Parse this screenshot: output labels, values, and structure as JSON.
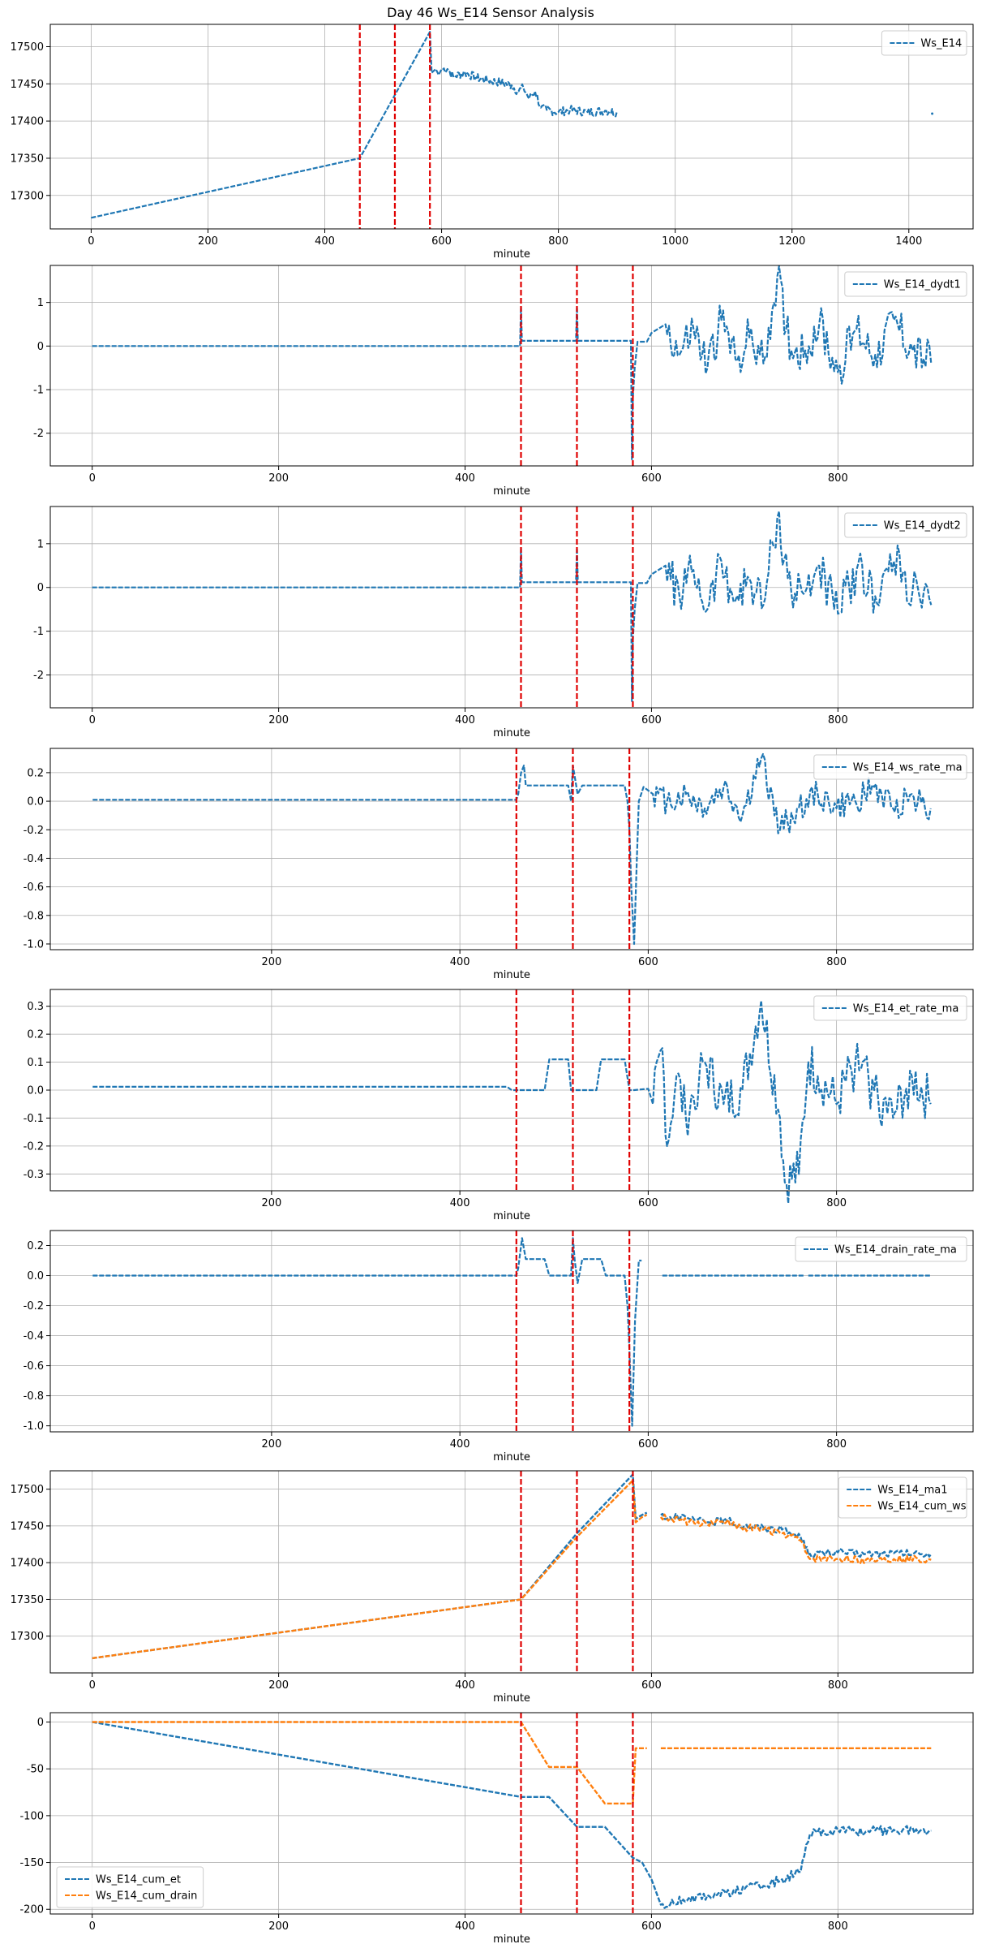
{
  "figure_title": "Day 46 Ws_E14 Sensor Analysis",
  "colors": {
    "blue": "#1f77b4",
    "orange": "#ff7f0e",
    "vline": "#e00000",
    "grid": "#b0b0b0"
  },
  "chart_data": [
    {
      "type": "line",
      "title": "",
      "xlabel": "minute",
      "xlim": [
        -70,
        1510
      ],
      "ylim": [
        17255,
        17530
      ],
      "xticks": [
        0,
        200,
        400,
        600,
        800,
        1000,
        1200,
        1400
      ],
      "yticks": [
        17300,
        17350,
        17400,
        17450,
        17500
      ],
      "yticklabels": [
        "17300",
        "17350",
        "17400",
        "17450",
        "17500"
      ],
      "vlines": [
        460,
        520,
        580
      ],
      "legend": {
        "position": "top-right"
      },
      "series": [
        {
          "name": "Ws_E14",
          "color": "#1f77b4",
          "style": "dashed",
          "width": 2.2,
          "x": [
            0,
            460,
            520,
            580,
            583,
            590,
            595,
            600,
            610,
            620,
            640,
            660,
            680,
            700,
            720,
            730,
            740,
            750,
            760,
            770,
            780,
            800,
            820,
            850,
            880,
            900,
            1440
          ],
          "y": [
            17270,
            17350,
            17435,
            17520,
            17465,
            17470,
            17462,
            17470,
            17470,
            17460,
            17465,
            17458,
            17455,
            17452,
            17448,
            17440,
            17445,
            17430,
            17440,
            17418,
            17415,
            17412,
            17415,
            17412,
            17414,
            17412,
            17410
          ],
          "gaps_after_x": [
            900
          ],
          "noise": 6,
          "noise_from": 600,
          "noise_to": 900
        }
      ]
    },
    {
      "type": "line",
      "title": "",
      "xlabel": "minute",
      "xlim": [
        -45,
        945
      ],
      "ylim": [
        -2.75,
        1.85
      ],
      "xticks": [
        0,
        200,
        400,
        600,
        800
      ],
      "yticks": [
        -2,
        -1,
        0,
        1
      ],
      "yticklabels": [
        "-2",
        "-1",
        "0",
        "1"
      ],
      "vlines": [
        460,
        520,
        580
      ],
      "legend": {
        "position": "top-right"
      },
      "series": [
        {
          "name": "Ws_E14_dydt1",
          "color": "#1f77b4",
          "style": "dashed",
          "width": 2.2,
          "x": [
            0,
            459,
            460,
            461,
            519,
            520,
            521,
            578,
            579,
            580,
            582,
            585,
            590,
            595,
            600,
            615,
            630,
            645,
            660,
            675,
            690,
            705,
            720,
            735,
            750,
            765,
            780,
            800,
            820,
            840,
            860,
            880,
            900
          ],
          "y": [
            0,
            0,
            0.9,
            0.12,
            0.12,
            0.9,
            0.12,
            0.12,
            -2.6,
            -1.2,
            -0.5,
            0.1,
            0.1,
            0.1,
            0.3,
            0.5,
            -0.2,
            0.4,
            -0.5,
            0.6,
            -0.3,
            0.2,
            -0.4,
            1.6,
            -0.1,
            -0.1,
            0.5,
            -0.6,
            0.4,
            -0.2,
            0.6,
            -0.1,
            -0.4
          ],
          "gaps_after_x": [],
          "noise": 0.5,
          "noise_from": 605,
          "noise_to": 900
        }
      ]
    },
    {
      "type": "line",
      "title": "",
      "xlabel": "minute",
      "xlim": [
        -45,
        945
      ],
      "ylim": [
        -2.75,
        1.85
      ],
      "xticks": [
        0,
        200,
        400,
        600,
        800
      ],
      "yticks": [
        -2,
        -1,
        0,
        1
      ],
      "yticklabels": [
        "-2",
        "-1",
        "0",
        "1"
      ],
      "vlines": [
        460,
        520,
        580
      ],
      "legend": {
        "position": "top-right"
      },
      "series": [
        {
          "name": "Ws_E14_dydt2",
          "color": "#1f77b4",
          "style": "dashed",
          "width": 2.2,
          "x": [
            0,
            459,
            460,
            461,
            519,
            520,
            521,
            578,
            579,
            580,
            582,
            585,
            590,
            595,
            600,
            615,
            630,
            645,
            660,
            675,
            690,
            705,
            720,
            735,
            750,
            765,
            780,
            800,
            820,
            840,
            860,
            880,
            900
          ],
          "y": [
            0,
            0,
            0.9,
            0.12,
            0.12,
            0.9,
            0.12,
            0.12,
            -2.6,
            -1.2,
            -0.5,
            0.1,
            0.1,
            0.1,
            0.3,
            0.5,
            -0.2,
            0.4,
            -0.5,
            0.6,
            -0.3,
            0.2,
            -0.4,
            1.6,
            -0.1,
            -0.1,
            0.5,
            -0.6,
            0.4,
            -0.2,
            0.6,
            -0.1,
            -0.4
          ],
          "gaps_after_x": [],
          "noise": 0.5,
          "noise_from": 605,
          "noise_to": 900
        }
      ]
    },
    {
      "type": "line",
      "title": "",
      "xlabel": "minute",
      "xlim": [
        -35,
        945
      ],
      "ylim": [
        -1.04,
        0.37
      ],
      "xticks": [
        200,
        400,
        600,
        800
      ],
      "yticks": [
        -1.0,
        -0.8,
        -0.6,
        -0.4,
        -0.2,
        0.0,
        0.2
      ],
      "yticklabels": [
        "-1.0",
        "-0.8",
        "-0.6",
        "-0.4",
        "-0.2",
        "0.0",
        "0.2"
      ],
      "vlines": [
        460,
        520,
        580
      ],
      "legend": {
        "position": "top-right"
      },
      "series": [
        {
          "name": "Ws_E14_ws_rate_ma",
          "color": "#1f77b4",
          "style": "dashed",
          "width": 2.2,
          "x": [
            10,
            460,
            462,
            465,
            468,
            470,
            490,
            495,
            500,
            515,
            518,
            520,
            525,
            530,
            535,
            540,
            575,
            578,
            580,
            582,
            585,
            588,
            590,
            595,
            605,
            620,
            640,
            660,
            680,
            700,
            720,
            740,
            760,
            780,
            800,
            820,
            840,
            860,
            880,
            900
          ],
          "y": [
            0.01,
            0.01,
            0.05,
            0.2,
            0.25,
            0.11,
            0.11,
            0.11,
            0.11,
            0.11,
            0.0,
            0.25,
            0.05,
            0.11,
            0.11,
            0.11,
            0.11,
            0.0,
            -0.2,
            -0.6,
            -1.0,
            -0.4,
            0.0,
            0.1,
            0.05,
            0.0,
            0.05,
            -0.05,
            0.1,
            -0.1,
            0.3,
            -0.2,
            -0.05,
            0.05,
            -0.05,
            0.0,
            0.1,
            -0.05,
            0.05,
            -0.05
          ],
          "gaps_after_x": [],
          "noise": 0.1,
          "noise_from": 605,
          "noise_to": 900
        }
      ]
    },
    {
      "type": "line",
      "title": "",
      "xlabel": "minute",
      "xlim": [
        -35,
        945
      ],
      "ylim": [
        -0.36,
        0.36
      ],
      "xticks": [
        200,
        400,
        600,
        800
      ],
      "yticks": [
        -0.3,
        -0.2,
        -0.1,
        0.0,
        0.1,
        0.2,
        0.3
      ],
      "yticklabels": [
        "-0.3",
        "-0.2",
        "-0.1",
        "0.0",
        "0.1",
        "0.2",
        "0.3"
      ],
      "vlines": [
        460,
        520,
        580
      ],
      "legend": {
        "position": "top-right"
      },
      "series": [
        {
          "name": "Ws_E14_et_rate_ma",
          "color": "#1f77b4",
          "style": "dashed",
          "width": 2.2,
          "x": [
            10,
            450,
            455,
            470,
            490,
            495,
            515,
            518,
            520,
            525,
            545,
            550,
            575,
            580,
            585,
            600,
            605,
            615,
            620,
            630,
            640,
            660,
            680,
            700,
            720,
            740,
            745,
            760,
            770,
            780,
            800,
            820,
            840,
            860,
            880,
            900
          ],
          "y": [
            0.012,
            0.012,
            0.0,
            0.0,
            0.0,
            0.11,
            0.11,
            0.0,
            0.0,
            0.0,
            0.0,
            0.11,
            0.11,
            0.0,
            0.0,
            0.005,
            -0.05,
            0.15,
            -0.2,
            0.05,
            -0.1,
            0.1,
            -0.05,
            0.0,
            0.32,
            -0.1,
            -0.33,
            -0.3,
            0.1,
            0.05,
            -0.05,
            0.1,
            0.0,
            -0.1,
            0.05,
            -0.05
          ],
          "gaps_after_x": [],
          "noise": 0.09,
          "noise_from": 605,
          "noise_to": 900
        }
      ]
    },
    {
      "type": "line",
      "title": "",
      "xlabel": "minute",
      "xlim": [
        -35,
        945
      ],
      "ylim": [
        -1.04,
        0.3
      ],
      "xticks": [
        200,
        400,
        600,
        800
      ],
      "yticks": [
        -1.0,
        -0.8,
        -0.6,
        -0.4,
        -0.2,
        0.0,
        0.2
      ],
      "yticklabels": [
        "-1.0",
        "-0.8",
        "-0.6",
        "-0.4",
        "-0.2",
        "0.0",
        "0.2"
      ],
      "vlines": [
        460,
        520,
        580
      ],
      "legend": {
        "position": "top-right"
      },
      "series": [
        {
          "name": "Ws_E14_drain_rate_ma",
          "color": "#1f77b4",
          "style": "dashed",
          "width": 2.2,
          "x": [
            10,
            460,
            462,
            466,
            470,
            490,
            495,
            515,
            518,
            520,
            522,
            525,
            530,
            535,
            550,
            555,
            575,
            578,
            580,
            583,
            586,
            590,
            593,
            615,
            765,
            770,
            900
          ],
          "y": [
            0.0,
            0.0,
            0.05,
            0.25,
            0.11,
            0.11,
            0.0,
            0.0,
            0.0,
            0.25,
            0.1,
            -0.05,
            0.11,
            0.11,
            0.11,
            0.0,
            0.0,
            -0.2,
            -0.5,
            -1.0,
            -0.3,
            0.1,
            0.1,
            0.0,
            0.0,
            0.0,
            0.0
          ],
          "gaps_after_x": [
            593,
            765
          ],
          "noise": 0,
          "noise_from": 0,
          "noise_to": 0
        }
      ]
    },
    {
      "type": "line",
      "title": "",
      "xlabel": "minute",
      "xlim": [
        -45,
        945
      ],
      "ylim": [
        17250,
        17525
      ],
      "xticks": [
        0,
        200,
        400,
        600,
        800
      ],
      "yticks": [
        17300,
        17350,
        17400,
        17450,
        17500
      ],
      "yticklabels": [
        "17300",
        "17350",
        "17400",
        "17450",
        "17500"
      ],
      "vlines": [
        460,
        520,
        580
      ],
      "legend": {
        "position": "top-right"
      },
      "series": [
        {
          "name": "Ws_E14_ma1",
          "color": "#1f77b4",
          "style": "dashed",
          "width": 2.4,
          "x": [
            0,
            460,
            520,
            580,
            583,
            590,
            595,
            610,
            620,
            640,
            660,
            680,
            700,
            720,
            740,
            760,
            765,
            770,
            800,
            830,
            860,
            900
          ],
          "y": [
            17270,
            17350,
            17440,
            17520,
            17460,
            17465,
            17468,
            17465,
            17462,
            17460,
            17455,
            17458,
            17450,
            17448,
            17445,
            17435,
            17420,
            17412,
            17414,
            17412,
            17413,
            17412
          ],
          "gaps_after_x": [
            595
          ],
          "noise": 5,
          "noise_from": 610,
          "noise_to": 900
        },
        {
          "name": "Ws_E14_cum_ws",
          "color": "#ff7f0e",
          "style": "dashed",
          "width": 2.4,
          "x": [
            0,
            460,
            520,
            580,
            583,
            590,
            595,
            610,
            620,
            640,
            660,
            680,
            700,
            720,
            740,
            760,
            765,
            770,
            800,
            830,
            860,
            900
          ],
          "y": [
            17270,
            17350,
            17435,
            17512,
            17455,
            17462,
            17465,
            17462,
            17460,
            17455,
            17452,
            17455,
            17448,
            17445,
            17440,
            17430,
            17415,
            17405,
            17405,
            17404,
            17405,
            17404
          ],
          "gaps_after_x": [
            595
          ],
          "noise": 5,
          "noise_from": 610,
          "noise_to": 900
        }
      ]
    },
    {
      "type": "line",
      "title": "",
      "xlabel": "minute",
      "xlim": [
        -45,
        945
      ],
      "ylim": [
        -205,
        10
      ],
      "xticks": [
        0,
        200,
        400,
        600,
        800
      ],
      "yticks": [
        -200,
        -150,
        -100,
        -50,
        0
      ],
      "yticklabels": [
        "-200",
        "-150",
        "-100",
        "-50",
        "0"
      ],
      "vlines": [
        460,
        520,
        580
      ],
      "legend": {
        "position": "bottom-left"
      },
      "series": [
        {
          "name": "Ws_E14_cum_et",
          "color": "#1f77b4",
          "style": "dashed",
          "width": 2.4,
          "x": [
            0,
            460,
            490,
            520,
            550,
            580,
            590,
            600,
            610,
            620,
            640,
            660,
            680,
            700,
            720,
            740,
            760,
            770,
            800,
            830,
            860,
            900
          ],
          "y": [
            0,
            -80,
            -80,
            -112,
            -112,
            -145,
            -150,
            -168,
            -195,
            -195,
            -188,
            -185,
            -183,
            -178,
            -175,
            -168,
            -160,
            -120,
            -115,
            -117,
            -115,
            -116
          ],
          "gaps_after_x": [],
          "noise": 5,
          "noise_from": 605,
          "noise_to": 900
        },
        {
          "name": "Ws_E14_cum_drain",
          "color": "#ff7f0e",
          "style": "dashed",
          "width": 2.4,
          "x": [
            0,
            460,
            490,
            520,
            550,
            575,
            580,
            583,
            590,
            595,
            610,
            900
          ],
          "y": [
            0,
            0,
            -48,
            -48,
            -87,
            -87,
            -87,
            -28,
            -28,
            -28,
            -28,
            -28
          ],
          "gaps_after_x": [
            595
          ],
          "noise": 0,
          "noise_from": 0,
          "noise_to": 0
        }
      ]
    }
  ]
}
